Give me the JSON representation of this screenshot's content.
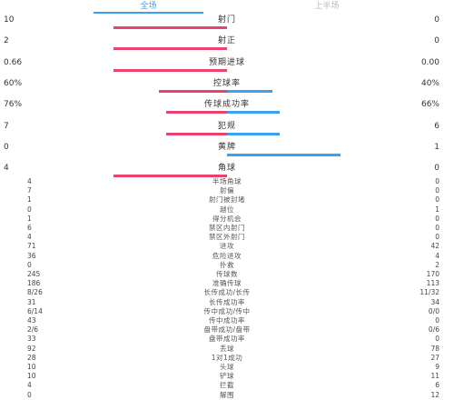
{
  "tabs": [
    {
      "label": "全场",
      "active": true
    },
    {
      "label": "上半场",
      "active": false
    }
  ],
  "colors": {
    "home": "#e8436e",
    "away": "#3aa0f2",
    "tab_active": "#3aa0f2"
  },
  "main_stats": [
    {
      "label": "射门",
      "home": "10",
      "away": "0",
      "home_share": 1.0,
      "away_share": 0.0
    },
    {
      "label": "射正",
      "home": "2",
      "away": "0",
      "home_share": 1.0,
      "away_share": 0.0
    },
    {
      "label": "预期进球",
      "home": "0.66",
      "away": "0.00",
      "home_share": 1.0,
      "away_share": 0.0
    },
    {
      "label": "控球率",
      "home": "60%",
      "away": "40%",
      "home_share": 0.6,
      "away_share": 0.4
    },
    {
      "label": "传球成功率",
      "home": "76%",
      "away": "66%",
      "home_share": 0.535,
      "away_share": 0.465
    },
    {
      "label": "犯规",
      "home": "7",
      "away": "6",
      "home_share": 0.54,
      "away_share": 0.46
    },
    {
      "label": "黄牌",
      "home": "0",
      "away": "1",
      "home_share": 0.0,
      "away_share": 1.0
    },
    {
      "label": "角球",
      "home": "4",
      "away": "0",
      "home_share": 1.0,
      "away_share": 0.0
    }
  ],
  "detail_stats": [
    {
      "label": "半场角球",
      "home": "4",
      "away": "0"
    },
    {
      "label": "射偏",
      "home": "7",
      "away": "0"
    },
    {
      "label": "射门被封堵",
      "home": "1",
      "away": "0"
    },
    {
      "label": "越位",
      "home": "0",
      "away": "1"
    },
    {
      "label": "得分机会",
      "home": "1",
      "away": "0"
    },
    {
      "label": "禁区内射门",
      "home": "6",
      "away": "0"
    },
    {
      "label": "禁区外射门",
      "home": "4",
      "away": "0"
    },
    {
      "label": "进攻",
      "home": "71",
      "away": "42"
    },
    {
      "label": "危险进攻",
      "home": "36",
      "away": "4"
    },
    {
      "label": "扑救",
      "home": "0",
      "away": "2"
    },
    {
      "label": "传球数",
      "home": "245",
      "away": "170"
    },
    {
      "label": "准确传球",
      "home": "186",
      "away": "113"
    },
    {
      "label": "长传成功/长传",
      "home": "8/26",
      "away": "11/32"
    },
    {
      "label": "长传成功率",
      "home": "31",
      "away": "34"
    },
    {
      "label": "传中成功/传中",
      "home": "6/14",
      "away": "0/0"
    },
    {
      "label": "传中成功率",
      "home": "43",
      "away": "0"
    },
    {
      "label": "盘带成功/盘带",
      "home": "2/6",
      "away": "0/6"
    },
    {
      "label": "盘带成功率",
      "home": "33",
      "away": "0"
    },
    {
      "label": "丢球",
      "home": "92",
      "away": "78"
    },
    {
      "label": "1对1成功",
      "home": "28",
      "away": "27"
    },
    {
      "label": "头球",
      "home": "10",
      "away": "9"
    },
    {
      "label": "铲球",
      "home": "10",
      "away": "11"
    },
    {
      "label": "拦截",
      "home": "4",
      "away": "6"
    },
    {
      "label": "解围",
      "home": "0",
      "away": "12"
    }
  ]
}
